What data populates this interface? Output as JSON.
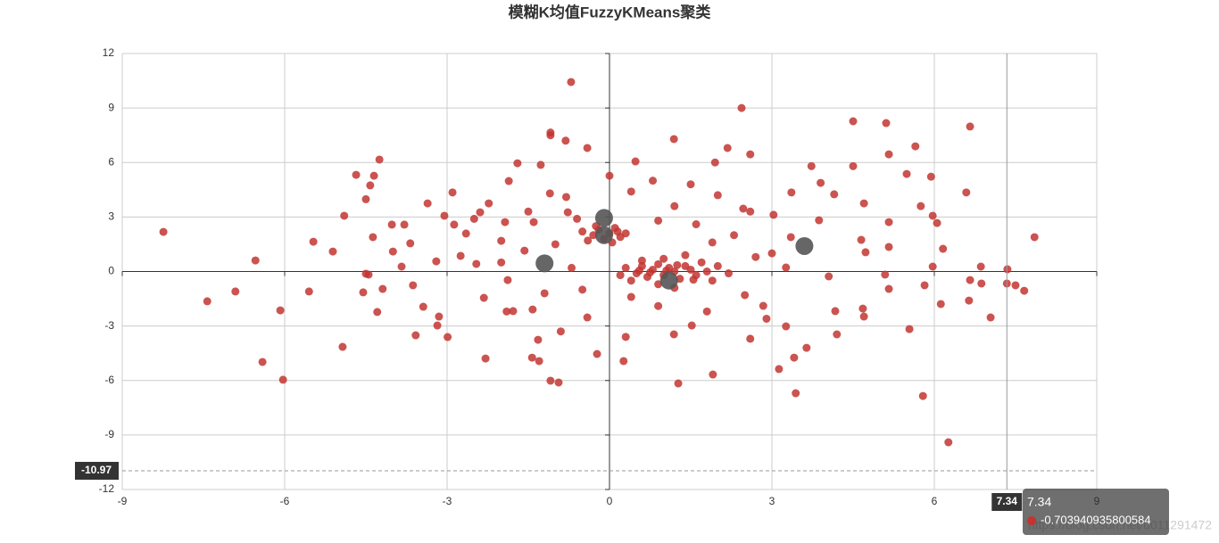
{
  "chart_data": {
    "type": "scatter",
    "title": "模糊K均值FuzzyKMeans聚类",
    "xlim": [
      -9,
      9
    ],
    "xticks": [
      -9,
      -6,
      -3,
      0,
      3,
      6,
      9
    ],
    "ylim": [
      -12,
      12
    ],
    "yticks": [
      -12,
      -9,
      -6,
      -3,
      0,
      3,
      6,
      9,
      12
    ],
    "grid": true,
    "series": [
      {
        "color": "#c23531",
        "x": [
          -0.71,
          2.44,
          4.5,
          5.11,
          6.66,
          -1.09,
          -1.09,
          -0.81,
          1.19,
          5.65,
          -0.41,
          2.18,
          2.6,
          5.16,
          -4.25,
          0.48,
          -1.7,
          -1.27,
          1.95,
          4.5,
          3.73,
          -4.68,
          -4.35,
          0,
          5.94,
          5.49,
          -1.86,
          -4.42,
          3.9,
          -2.9,
          -1.1,
          3.36,
          6.59,
          -4.5,
          -3.36,
          -2.23,
          4.15,
          5.75,
          4.7,
          -2.39,
          -4.9,
          -0.77,
          5.97,
          -3.05,
          2.47,
          3.03,
          -4.02,
          -3.79,
          -8.24,
          -2.87,
          -1.93,
          -1.4,
          3.87,
          5.16,
          6.05,
          -4.37,
          -2.65,
          7.85,
          -5.47,
          -3.68,
          -2.0,
          3.35,
          5.16,
          4.65,
          6.16,
          -5.11,
          -4.0,
          -2.75,
          -1.57,
          4.73,
          -6.54,
          -3.2,
          -3.84,
          -2.46,
          5.97,
          6.86,
          7.35,
          3.26,
          -4.5,
          -4.45,
          4.05,
          5.09,
          -1.88,
          -3.63,
          6.66,
          6.87,
          7.34,
          7.5,
          7.66,
          5.16,
          5.82,
          -6.91,
          -5.55,
          -4.55,
          -4.19,
          -2.32,
          -7.43,
          6.64,
          6.12,
          -3.44,
          -1.42,
          -6.08,
          -4.29,
          2.84,
          4.68,
          4.17,
          7.04,
          -3.15,
          -1.78,
          4.7,
          -0.41,
          -3.18,
          1.52,
          3.26,
          5.54,
          -3.58,
          -2.99,
          4.2,
          1.19,
          -1.32,
          -4.93,
          3.64,
          -0.23,
          -2.29,
          -1.43,
          -1.3,
          0.26,
          -6.41,
          3.41,
          3.13,
          1.91,
          -1.09,
          -0.94,
          1.27,
          -6.03,
          3.44,
          5.79,
          6.26,
          0.3,
          0.5,
          0.6,
          0.7,
          0.8,
          0.9,
          1.0,
          1.1,
          1.2,
          1.3,
          1.4,
          1.5,
          1.6,
          1.7,
          1.8,
          0.4,
          0.9,
          1.2,
          0.6,
          1.0,
          1.4,
          2.0,
          2.2,
          0.2,
          1.9,
          0.75,
          1.05,
          1.25,
          0.55,
          1.55,
          -0.3,
          -0.2,
          -0.1,
          0.0,
          0.1,
          0.2,
          -0.4,
          0.15,
          -0.25,
          0.3,
          -0.5,
          0.05,
          0.8,
          1.5,
          2.0,
          -0.8,
          0.4,
          1.2,
          -1.5,
          2.6,
          0.9,
          -0.6,
          1.6,
          2.3,
          -1.0,
          1.9,
          -2.0,
          -0.7,
          2.7,
          -0.5,
          0.4,
          2.5,
          -1.2,
          0.9,
          1.8,
          -0.9,
          2.6,
          0.3,
          2.9,
          -1.9,
          3.0,
          -2.5
        ],
        "y": [
          10.43,
          9.0,
          8.27,
          8.17,
          7.98,
          7.65,
          7.5,
          7.2,
          7.29,
          6.89,
          6.8,
          6.8,
          6.45,
          6.45,
          6.16,
          6.06,
          5.96,
          5.87,
          6.0,
          5.8,
          5.8,
          5.32,
          5.27,
          5.27,
          5.22,
          5.37,
          4.98,
          4.74,
          4.88,
          4.35,
          4.3,
          4.35,
          4.35,
          3.98,
          3.75,
          3.75,
          4.25,
          3.6,
          3.75,
          3.26,
          3.07,
          3.26,
          3.07,
          3.07,
          3.46,
          3.12,
          2.58,
          2.58,
          2.18,
          2.58,
          2.72,
          2.72,
          2.82,
          2.72,
          2.67,
          1.89,
          2.09,
          1.89,
          1.64,
          1.55,
          1.69,
          1.89,
          1.35,
          1.74,
          1.25,
          1.1,
          1.1,
          0.86,
          1.15,
          1.06,
          0.61,
          0.56,
          0.27,
          0.42,
          0.27,
          0.27,
          0.12,
          0.22,
          -0.12,
          -0.17,
          -0.27,
          -0.17,
          -0.47,
          -0.76,
          -0.47,
          -0.66,
          -0.66,
          -0.76,
          -1.06,
          -0.96,
          -0.76,
          -1.1,
          -1.1,
          -1.15,
          -0.96,
          -1.45,
          -1.64,
          -1.6,
          -1.79,
          -1.94,
          -2.09,
          -2.14,
          -2.23,
          -1.89,
          -2.04,
          -2.18,
          -2.53,
          -2.48,
          -2.18,
          -2.48,
          -2.53,
          -2.97,
          -2.97,
          -3.02,
          -3.17,
          -3.51,
          -3.61,
          -3.46,
          -3.46,
          -3.76,
          -4.15,
          -4.2,
          -4.54,
          -4.79,
          -4.74,
          -4.93,
          -4.93,
          -4.98,
          -4.74,
          -5.37,
          -5.67,
          -6.01,
          -6.11,
          -6.16,
          -5.96,
          -6.7,
          -6.85,
          -9.4,
          0.2,
          -0.1,
          0.3,
          -0.3,
          0.1,
          0.4,
          -0.2,
          0.2,
          0.0,
          -0.4,
          0.3,
          0.1,
          -0.2,
          0.5,
          0.0,
          -0.5,
          -0.7,
          -0.9,
          0.6,
          0.7,
          0.9,
          0.3,
          -0.1,
          -0.2,
          -0.5,
          -0.05,
          0.05,
          0.35,
          0.05,
          -0.45,
          2.0,
          2.3,
          1.8,
          2.1,
          2.4,
          1.9,
          1.7,
          2.2,
          2.5,
          2.1,
          2.2,
          1.6,
          5.0,
          4.8,
          4.2,
          4.1,
          4.4,
          3.6,
          3.3,
          3.3,
          2.8,
          2.9,
          2.6,
          2.0,
          1.5,
          1.6,
          0.5,
          0.2,
          0.8,
          -1.0,
          -1.4,
          -1.3,
          -1.2,
          -1.9,
          -2.2,
          -3.3,
          -3.7,
          -3.6,
          -2.6,
          -2.2,
          1.0,
          2.9
        ]
      },
      {
        "color": "#555555",
        "x": [
          -0.1,
          -0.1,
          -1.2,
          1.1,
          3.6
        ],
        "y": [
          2.95,
          2.0,
          0.45,
          -0.5,
          1.4
        ]
      }
    ],
    "axis_pointer": {
      "x": 7.34,
      "y": -10.97
    },
    "tooltip": {
      "value": -0.703940935800584
    },
    "watermark": "https://blog.csdn.net/u011291472"
  }
}
